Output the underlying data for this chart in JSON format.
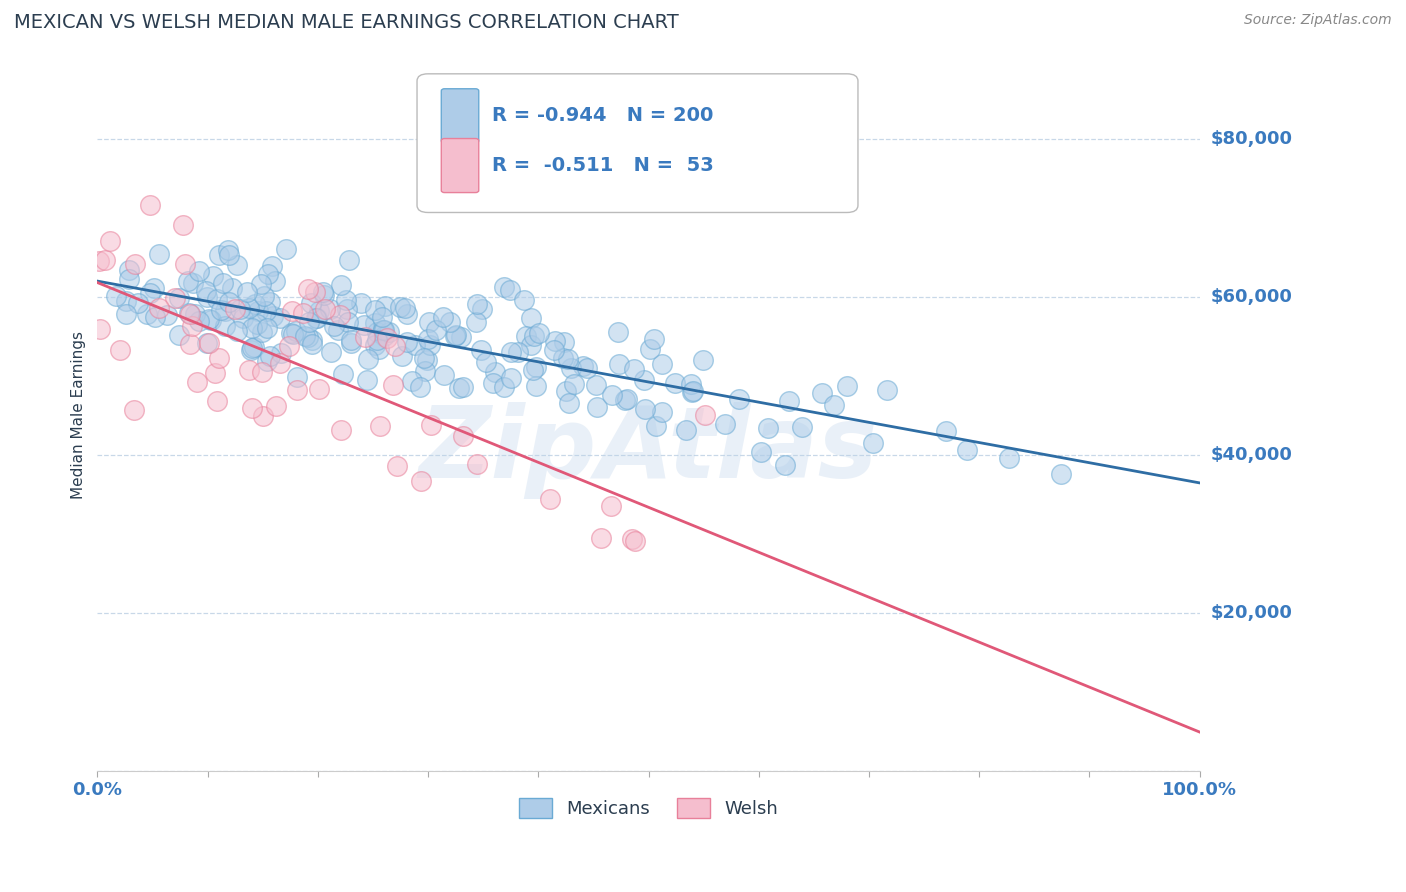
{
  "title": "MEXICAN VS WELSH MEDIAN MALE EARNINGS CORRELATION CHART",
  "source": "Source: ZipAtlas.com",
  "ylabel": "Median Male Earnings",
  "xlim": [
    0,
    1.0
  ],
  "ylim": [
    0,
    90000
  ],
  "yticks": [
    0,
    20000,
    40000,
    60000,
    80000
  ],
  "ytick_labels": [
    "",
    "$20,000",
    "$40,000",
    "$60,000",
    "$80,000"
  ],
  "xtick_positions": [
    0.0,
    0.1,
    0.2,
    0.3,
    0.4,
    0.5,
    0.6,
    0.7,
    0.8,
    0.9,
    1.0
  ],
  "xtick_labels_show": [
    "0.0%",
    "",
    "",
    "",
    "",
    "",
    "",
    "",
    "",
    "",
    "100.0%"
  ],
  "mexicans_R": -0.944,
  "mexicans_N": 200,
  "welsh_R": -0.511,
  "welsh_N": 53,
  "mexicans_color": "#aecce8",
  "mexicans_edge_color": "#6aaad4",
  "mexicans_line_color": "#2e6da4",
  "welsh_color": "#f5bece",
  "welsh_edge_color": "#e8809a",
  "welsh_line_color": "#e05878",
  "legend_label_mexicans": "Mexicans",
  "legend_label_welsh": "Welsh",
  "title_color": "#2c3e50",
  "axis_label_color": "#2c3e50",
  "tick_label_color": "#3a7abf",
  "source_color": "#888888",
  "background_color": "#ffffff",
  "grid_color": "#c8d8e8",
  "watermark": "ZipAtlas",
  "seed_mexicans": 42,
  "seed_welsh": 77,
  "mexicans_intercept": 62000,
  "mexicans_slope": -27000,
  "welsh_intercept": 60000,
  "welsh_slope": -52000,
  "dot_size": 200,
  "dot_alpha": 0.55,
  "line_width": 2.0
}
